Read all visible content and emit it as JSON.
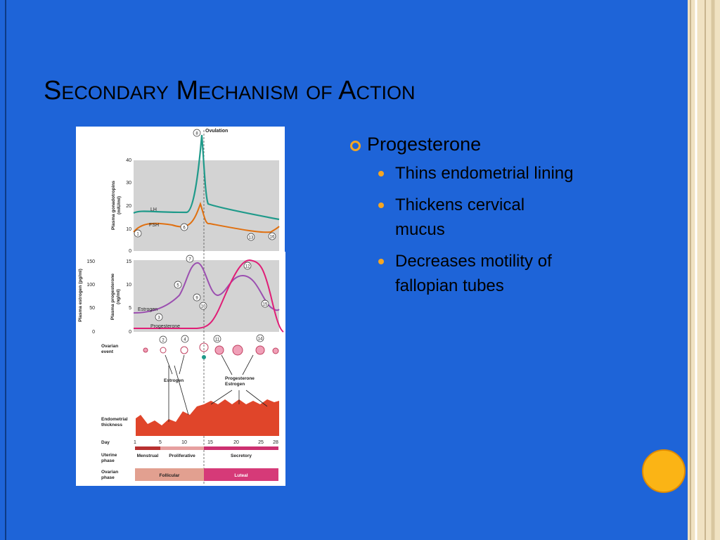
{
  "slide": {
    "title": "Secondary Mechanism of Action",
    "bullets": [
      {
        "text": "Progesterone",
        "sub": [
          "Thins endometrial lining",
          [
            "Thickens cervical",
            "mucus"
          ],
          [
            "Decreases motility of",
            "fallopian tubes"
          ]
        ]
      }
    ]
  },
  "figure": {
    "ovulation": "Ovulation",
    "gonadotropin_axis": {
      "label": [
        "Plasma gonadotropins",
        "(mIU/ml)"
      ],
      "ticks": [
        0,
        10,
        20,
        30,
        40
      ]
    },
    "lh": "LH",
    "fsh": "FSH",
    "estrogen_axis": {
      "label": [
        "Plasma estrogen (pg/ml)"
      ],
      "ticks": [
        0,
        50,
        100,
        150
      ]
    },
    "progesterone_axis": {
      "label": [
        "Plasma progesterone",
        "(ng/ml)"
      ],
      "ticks": [
        0,
        5,
        10,
        15
      ]
    },
    "estrogen_curve": "Estrogen",
    "progesterone_curve": "Progesterone",
    "markers": [
      1,
      2,
      3,
      4,
      5,
      6,
      7,
      8,
      9,
      10,
      11,
      12,
      13,
      14,
      15,
      16
    ],
    "ovarian_event": [
      "Ovarian",
      "event"
    ],
    "estrogen_arrow": "Estrogen",
    "progesterone_estrogen_arrow": [
      "Progesterone",
      "Estrogen"
    ],
    "endometrial_thickness": [
      "Endometrial",
      "thickness"
    ],
    "day": "Day",
    "days": [
      1,
      5,
      10,
      15,
      20,
      25,
      28
    ],
    "uterine_phase": [
      "Uterine",
      "phase"
    ],
    "uterine_phases": [
      "Menstrual",
      "Proliferative",
      "Secretory"
    ],
    "ovarian_phase": [
      "Ovarian",
      "phase"
    ],
    "ovarian_phases": [
      "Follicular",
      "Luteal"
    ]
  }
}
